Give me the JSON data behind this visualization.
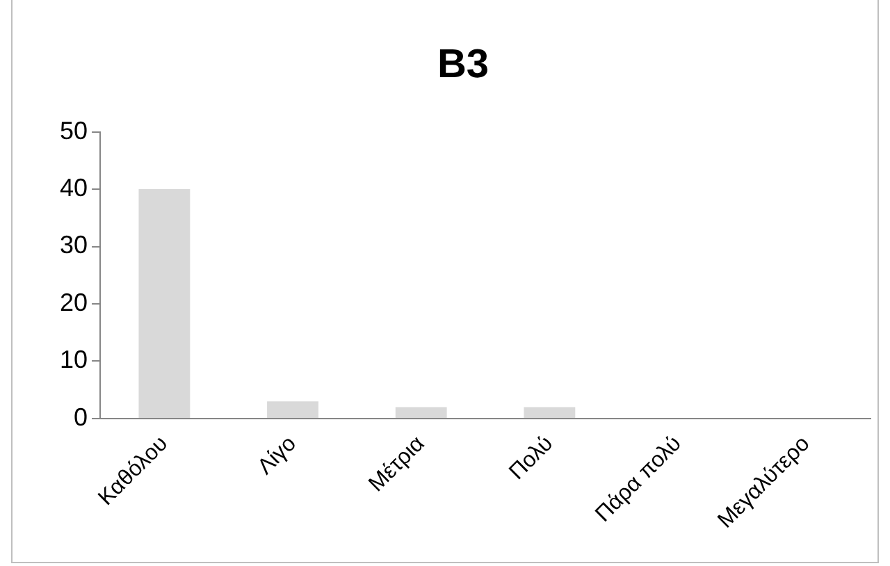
{
  "chart_data": {
    "type": "bar",
    "title": "B3",
    "categories": [
      "Καθόλου",
      "Λίγο",
      "Μέτρια",
      "Πολύ",
      "Πάρα πολύ",
      "Μεγαλύτερο"
    ],
    "values": [
      40,
      3,
      2,
      2,
      0,
      0
    ],
    "color": "#d9d9d9",
    "ylim": [
      0,
      50
    ],
    "yticks": [
      0,
      10,
      20,
      30,
      40,
      50
    ],
    "grid": false,
    "legend": false
  }
}
